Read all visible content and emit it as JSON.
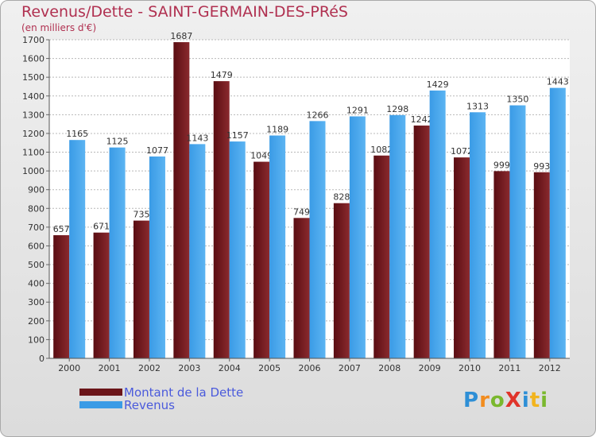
{
  "title": "Revenus/Dette - SAINT-GERMAIN-DES-PRéS",
  "subtitle": "(en milliers d'€)",
  "legend": [
    {
      "label": "Montant de la Dette",
      "color": "#6b1519"
    },
    {
      "label": "Revenus",
      "color": "#3a9be6"
    }
  ],
  "logo": {
    "text": "ProXiti",
    "letters": [
      {
        "ch": "P",
        "color": "#2e8fd6"
      },
      {
        "ch": "r",
        "color": "#f28c1e"
      },
      {
        "ch": "o",
        "color": "#7ab82e"
      },
      {
        "ch": "X",
        "color": "#e0342b"
      },
      {
        "ch": "i",
        "color": "#2e8fd6"
      },
      {
        "ch": "t",
        "color": "#f2b41e"
      },
      {
        "ch": "i",
        "color": "#7ab82e"
      }
    ]
  },
  "chart_data": {
    "type": "bar",
    "title": "Revenus/Dette - SAINT-GERMAIN-DES-PRéS",
    "subtitle": "(en milliers d'€)",
    "categories": [
      "2000",
      "2001",
      "2002",
      "2003",
      "2004",
      "2005",
      "2006",
      "2007",
      "2008",
      "2009",
      "2010",
      "2011",
      "2012"
    ],
    "series": [
      {
        "name": "Montant de la Dette",
        "color": "#6b1519",
        "values": [
          657,
          671,
          735,
          1687,
          1479,
          1049,
          749,
          828,
          1082,
          1242,
          1072,
          999,
          993
        ]
      },
      {
        "name": "Revenus",
        "color": "#3a9be6",
        "values": [
          1165,
          1125,
          1077,
          1143,
          1157,
          1189,
          1266,
          1291,
          1298,
          1429,
          1313,
          1350,
          1443
        ]
      }
    ],
    "yticks": [
      0,
      100,
      200,
      300,
      400,
      500,
      600,
      700,
      800,
      900,
      1000,
      1100,
      1200,
      1300,
      1400,
      1500,
      1600,
      1700
    ],
    "ylim": [
      0,
      1700
    ],
    "grid": true,
    "legend_position": "bottom-left"
  }
}
